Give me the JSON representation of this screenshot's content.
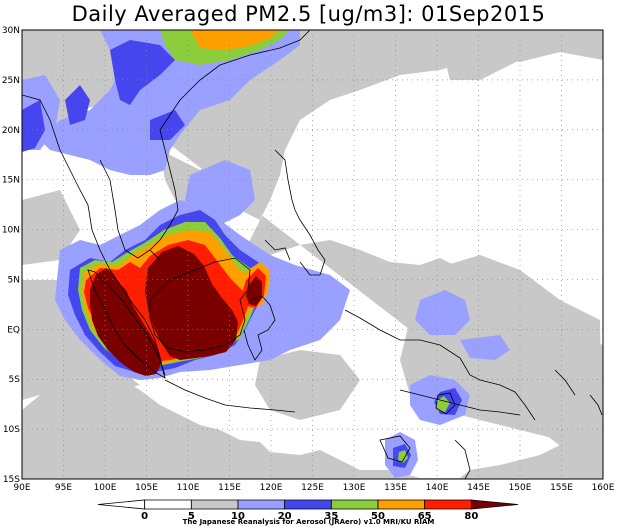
{
  "title": "Daily Averaged PM2.5 [ug/m3]: 01Sep2015",
  "map": {
    "lon_labels": [
      "90E",
      "95E",
      "100E",
      "105E",
      "110E",
      "115E",
      "120E",
      "125E",
      "130E",
      "135E",
      "140E",
      "145E",
      "150E",
      "155E",
      "160E"
    ],
    "lat_labels": [
      "30N",
      "25N",
      "20N",
      "15N",
      "10N",
      "5N",
      "EQ",
      "5S",
      "10S",
      "15S"
    ],
    "lon_range": [
      90,
      160
    ],
    "lat_range": [
      -15,
      30
    ],
    "grid": "dotted"
  },
  "colorbar": {
    "labels": [
      "0",
      "5",
      "10",
      "20",
      "35",
      "50",
      "65",
      "80"
    ],
    "colors": [
      "#ffffff",
      "#ffffff",
      "#c8c8c8",
      "#9aa0ff",
      "#4646ef",
      "#8ccd3c",
      "#ffa000",
      "#ff1e00",
      "#7a0000"
    ]
  },
  "credit": "The Japanese Reanalysis for Aerosol (JRAero) v1.0 MRI/KU RIAM",
  "level_colors": {
    "gray": "#c8c8c8",
    "lightblue": "#9aa0ff",
    "blue": "#4646ef",
    "green": "#8ccd3c",
    "orange": "#ffa000",
    "red": "#ff1e00",
    "darkred": "#7a0000"
  }
}
